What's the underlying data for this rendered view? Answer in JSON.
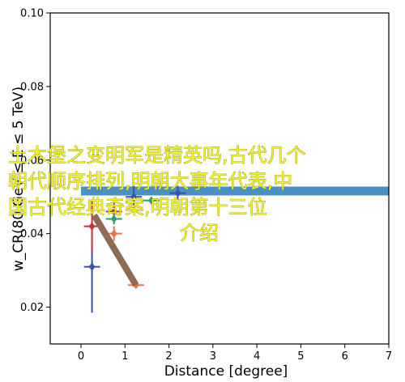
{
  "chart_data": {
    "type": "scatter",
    "xlabel": "Distance [degree]",
    "ylabel": "w_CR(80 GeV ≤ E ≤ 5 TeV)",
    "xlim": [
      -0.7,
      7.0
    ],
    "ylim": [
      0.01,
      0.1
    ],
    "xticks": [
      "0",
      "1",
      "2",
      "3",
      "4",
      "5",
      "6",
      "7"
    ],
    "yticks": [
      "0.02",
      "0.04",
      "0.06",
      "0.08",
      "0.10"
    ],
    "grid": false,
    "overlay_text": [
      "土木堡之变明军是精英吗,古代几个",
      "朝代顺序排列,明朝大事年代表,中",
      "国古代经典奇案,明朝第十三位",
      "介绍"
    ],
    "series": [
      {
        "color": "#4a90c4",
        "marker": "band",
        "x": [
          0.0,
          7.0
        ],
        "y": [
          0.0516,
          0.0516
        ]
      },
      {
        "color": "#3a4fa8",
        "marker": "diamond",
        "points": [
          {
            "x": 0.25,
            "y": 0.031,
            "yerr_low": 0.0125,
            "yerr_high": 0.0125
          },
          {
            "x": 1.2,
            "y": 0.05,
            "yerr_low": 0.003,
            "yerr_high": 0.003
          },
          {
            "x": 2.2,
            "y": 0.051,
            "yerr_low": 0.002,
            "yerr_high": 0.002
          }
        ]
      },
      {
        "color": "#c8323c",
        "marker": "diamond",
        "points": [
          {
            "x": 0.25,
            "y": 0.042,
            "yerr_low": 0.007,
            "yerr_high": 0.007
          },
          {
            "x": 0.75,
            "y": 0.046,
            "yerr_low": 0.003,
            "yerr_high": 0.003
          }
        ]
      },
      {
        "color": "#e8734a",
        "marker": "diamond",
        "points": [
          {
            "x": 0.75,
            "y": 0.04,
            "yerr_low": 0.002,
            "yerr_high": 0.002
          },
          {
            "x": 1.25,
            "y": 0.026,
            "yerr_low": 0.0005,
            "yerr_high": 0.0005
          }
        ]
      },
      {
        "color": "#2e9e6a",
        "marker": "diamond",
        "points": [
          {
            "x": 0.75,
            "y": 0.044,
            "yerr_low": 0.0015,
            "yerr_high": 0.0015
          },
          {
            "x": 1.6,
            "y": 0.049,
            "yerr_low": 0.001,
            "yerr_high": 0.001
          }
        ]
      },
      {
        "color": "#8f6a55",
        "marker": "line",
        "x": [
          0.3,
          1.25
        ],
        "y": [
          0.045,
          0.026
        ]
      }
    ]
  }
}
